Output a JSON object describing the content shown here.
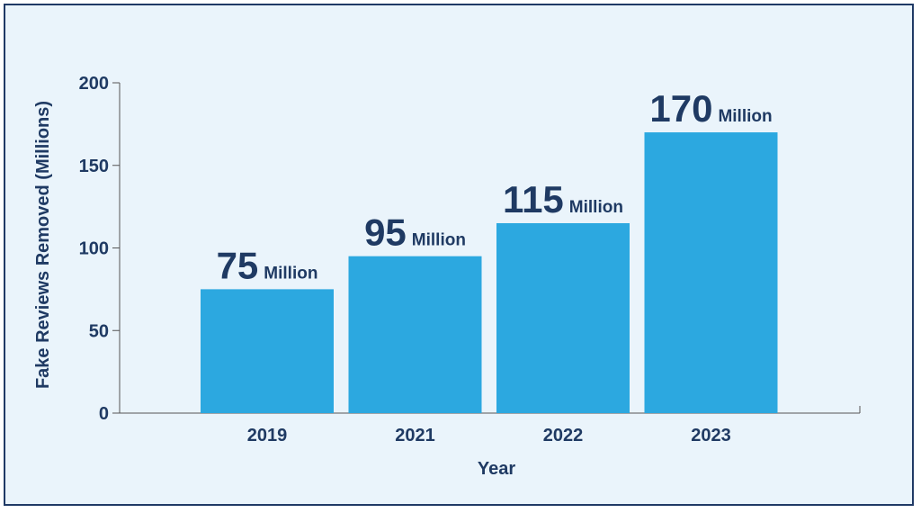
{
  "chart_data": {
    "type": "bar",
    "categories": [
      "2019",
      "2021",
      "2022",
      "2023"
    ],
    "values": [
      75,
      95,
      115,
      170
    ],
    "value_labels": [
      {
        "number": "75",
        "unit": "Million"
      },
      {
        "number": "95",
        "unit": "Million"
      },
      {
        "number": "115",
        "unit": "Million"
      },
      {
        "number": "170",
        "unit": "Million"
      }
    ],
    "xlabel": "Year",
    "ylabel": "Fake Reviews Removed (Millions)",
    "ylim": [
      0,
      200
    ],
    "yticks": [
      0,
      50,
      100,
      150,
      200
    ],
    "grid": false,
    "bar_color": "#2ca8e0",
    "text_color": "#1f3a63",
    "background_color": "#eaf4fb",
    "border_color": "#203a66"
  }
}
